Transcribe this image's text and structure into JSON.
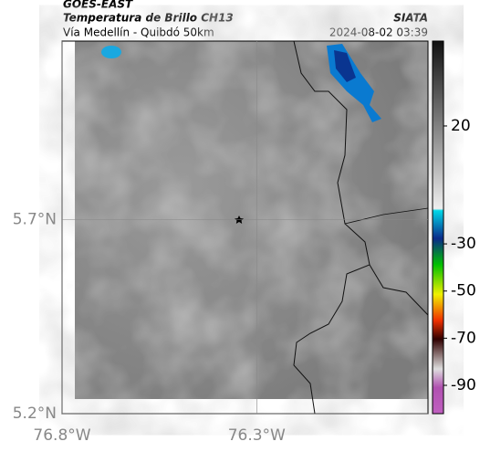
{
  "header": {
    "source": "GOES-EAST",
    "title": "Temperatura de Brillo CH13",
    "subtitle": "Vía Medellín - Quibdó 50km",
    "org": "SIATA",
    "datetime": "2024-08-02 03:39"
  },
  "map": {
    "lonlim": [
      -76.8,
      -75.86
    ],
    "latlim": [
      5.2,
      6.16
    ],
    "lat_ticks": [
      {
        "value": 5.7,
        "label": "5.7°N"
      },
      {
        "value": 5.2,
        "label": "5.2°N"
      }
    ],
    "lon_ticks": [
      {
        "value": -76.8,
        "label": "76.8°W"
      },
      {
        "value": -76.3,
        "label": "76.3°W"
      }
    ]
  },
  "colorbar": {
    "clim": [
      -102,
      56
    ],
    "ticks": [
      20,
      -30,
      -50,
      -70,
      -90
    ]
  }
}
